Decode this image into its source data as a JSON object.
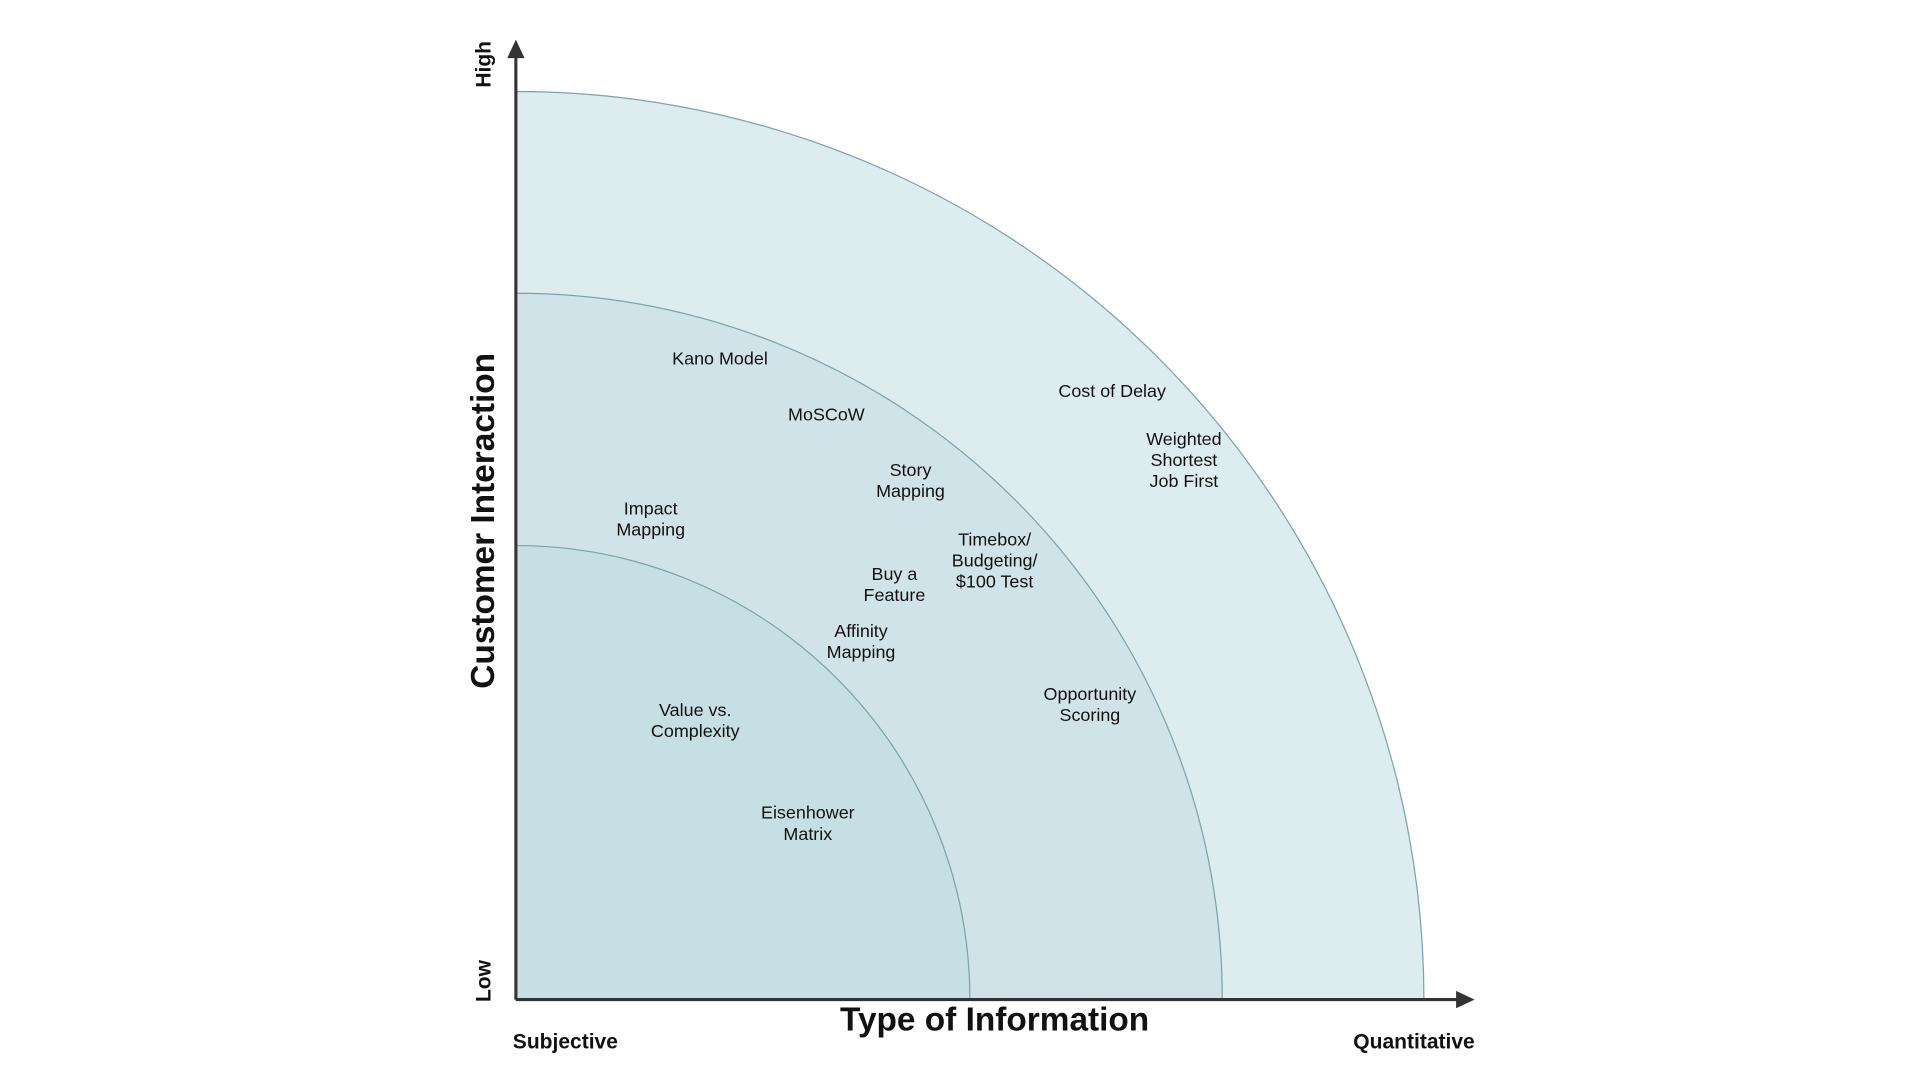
{
  "axes": {
    "y_title": "Customer Interaction",
    "y_high": "High",
    "y_low": "Low",
    "x_title": "Type of Information",
    "x_low": "Subjective",
    "x_high": "Quantitative"
  },
  "items": [
    {
      "lines": [
        "Kano Model"
      ]
    },
    {
      "lines": [
        "MoSCoW"
      ]
    },
    {
      "lines": [
        "Story",
        "Mapping"
      ]
    },
    {
      "lines": [
        "Impact",
        "Mapping"
      ]
    },
    {
      "lines": [
        "Timebox/",
        "Budgeting/",
        "$100 Test"
      ]
    },
    {
      "lines": [
        "Buy a",
        "Feature"
      ]
    },
    {
      "lines": [
        "Affinity",
        "Mapping"
      ]
    },
    {
      "lines": [
        "Value vs.",
        "Complexity"
      ]
    },
    {
      "lines": [
        "Eisenhower",
        "Matrix"
      ]
    },
    {
      "lines": [
        "Opportunity",
        "Scoring"
      ]
    },
    {
      "lines": [
        "Cost of Delay"
      ]
    },
    {
      "lines": [
        "Weighted",
        "Shortest",
        "Job First"
      ]
    }
  ]
}
